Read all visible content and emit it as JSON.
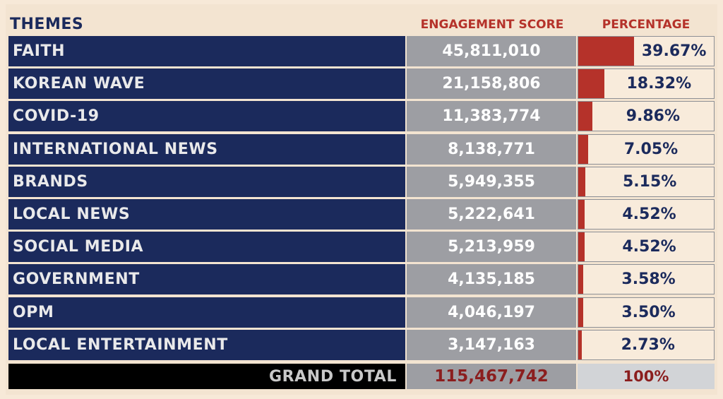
{
  "chart_data": {
    "type": "table",
    "headers": {
      "theme": "THEMES",
      "engagement": "ENGAGEMENT SCORE",
      "percentage": "PERCENTAGE"
    },
    "rows": [
      {
        "theme": "FAITH",
        "score": "45,811,010",
        "percent": 39.67,
        "percent_label": "39.67%"
      },
      {
        "theme": "KOREAN WAVE",
        "score": "21,158,806",
        "percent": 18.32,
        "percent_label": "18.32%"
      },
      {
        "theme": "COVID-19",
        "score": "11,383,774",
        "percent": 9.86,
        "percent_label": "9.86%"
      },
      {
        "theme": "INTERNATIONAL NEWS",
        "score": "8,138,771",
        "percent": 7.05,
        "percent_label": "7.05%"
      },
      {
        "theme": "BRANDS",
        "score": "5,949,355",
        "percent": 5.15,
        "percent_label": "5.15%"
      },
      {
        "theme": "LOCAL NEWS",
        "score": "5,222,641",
        "percent": 4.52,
        "percent_label": "4.52%"
      },
      {
        "theme": "SOCIAL MEDIA",
        "score": "5,213,959",
        "percent": 4.52,
        "percent_label": "4.52%"
      },
      {
        "theme": "GOVERNMENT",
        "score": "4,135,185",
        "percent": 3.58,
        "percent_label": "3.58%"
      },
      {
        "theme": "OPM",
        "score": "4,046,197",
        "percent": 3.5,
        "percent_label": "3.50%"
      },
      {
        "theme": "LOCAL ENTERTAINMENT",
        "score": "3,147,163",
        "percent": 2.73,
        "percent_label": "2.73%"
      }
    ],
    "total": {
      "label": "GRAND TOTAL",
      "score": "115,467,742",
      "percent_label": "100%"
    },
    "bar_scale_max_percent": 100
  },
  "colors": {
    "background": "#f7e9d8",
    "navy": "#1b2a5c",
    "gray": "#9d9ea3",
    "red": "#b5322a",
    "dark_red": "#8b1e1e",
    "black": "#000000",
    "light_gray": "#d2d4d7"
  }
}
